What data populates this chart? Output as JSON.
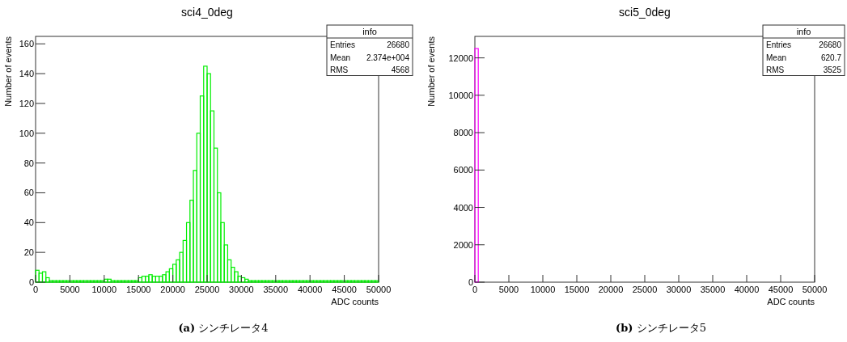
{
  "chart_data": [
    {
      "type": "histogram",
      "title": "sci4_0deg",
      "xlabel": "ADC counts",
      "ylabel": "Number of events",
      "color": "#00ee00",
      "bins": [
        0,
        500,
        1000,
        1500,
        2000,
        2500,
        3000,
        3500,
        4000,
        4500,
        5000,
        5500,
        6000,
        6500,
        7000,
        7500,
        8000,
        8500,
        9000,
        9500,
        10000,
        10500,
        11000,
        11500,
        12000,
        12500,
        13000,
        13500,
        14000,
        14500,
        15000,
        15500,
        16000,
        16500,
        17000,
        17500,
        18000,
        18500,
        19000,
        19500,
        20000,
        20500,
        21000,
        21500,
        22000,
        22500,
        23000,
        23500,
        24000,
        24500,
        25000,
        25500,
        26000,
        26500,
        27000,
        27500,
        28000,
        28500,
        29000,
        29500,
        30000,
        30500,
        31000,
        31500,
        32000,
        32500,
        33000,
        33500,
        34000,
        34500,
        35000,
        35500,
        36000,
        36500,
        37000,
        37500,
        38000,
        38500,
        39000,
        39500,
        40000,
        40500,
        41000,
        41500,
        42000,
        42500,
        43000,
        43500,
        44000,
        44500,
        45000,
        45500,
        46000,
        46500,
        47000,
        47500,
        48000,
        48500,
        49000,
        49500,
        50000
      ],
      "values": [
        8,
        6,
        7,
        3,
        1,
        1,
        1,
        1,
        1,
        1,
        1,
        1,
        1,
        1,
        1,
        1,
        1,
        1,
        1,
        1,
        2,
        2,
        1,
        1,
        1,
        1,
        1,
        1,
        1,
        1,
        3,
        4,
        4,
        5,
        4,
        4,
        4,
        5,
        7,
        9,
        12,
        15,
        20,
        28,
        40,
        55,
        75,
        100,
        125,
        145,
        140,
        115,
        90,
        60,
        40,
        25,
        15,
        10,
        7,
        4,
        3,
        2,
        1,
        1,
        1,
        1,
        1,
        1,
        1,
        1,
        1,
        1,
        1,
        1,
        1,
        1,
        1,
        1,
        1,
        1,
        1,
        1,
        1,
        1,
        1,
        1,
        1,
        1,
        1,
        1,
        1,
        1,
        1,
        1,
        1,
        1,
        1,
        1,
        1,
        1
      ],
      "xlim": [
        0,
        50000
      ],
      "xticks": [
        0,
        5000,
        10000,
        15000,
        20000,
        25000,
        30000,
        35000,
        40000,
        45000,
        50000
      ],
      "ylim": [
        0,
        165
      ],
      "yticks": [
        0,
        20,
        40,
        60,
        80,
        100,
        120,
        140,
        160
      ],
      "annotations": [
        "info",
        "Entries 26680",
        "Mean 2.374e+004",
        "RMS 4568",
        "(a) シンチレータ4"
      ]
    },
    {
      "type": "histogram",
      "title": "sci5_0deg",
      "xlabel": "ADC counts",
      "ylabel": "Number of events",
      "color": "#ff00ff",
      "bins": [
        0,
        500,
        1000,
        1500,
        2000,
        2500,
        3000,
        3500,
        4000,
        4500,
        5000,
        5500,
        6000,
        6500,
        7000,
        7500,
        8000,
        8500,
        9000,
        9500,
        10000,
        10500,
        11000,
        11500,
        12000,
        12500,
        13000,
        13500,
        14000,
        14500,
        15000,
        15500,
        16000,
        16500,
        17000,
        17500,
        18000,
        18500,
        19000,
        19500,
        20000,
        20500,
        21000,
        21500,
        22000,
        22500,
        23000,
        23500,
        24000,
        24500,
        25000,
        25500,
        26000,
        26500,
        27000,
        27500,
        28000,
        28500,
        29000,
        29500,
        30000,
        30500,
        31000,
        31500,
        32000,
        32500,
        33000,
        33500,
        34000,
        34500,
        35000,
        35500,
        36000,
        36500,
        37000,
        37500,
        38000,
        38500,
        39000,
        39500,
        40000,
        40500,
        41000,
        41500,
        42000,
        42500,
        43000,
        43500,
        44000,
        44500,
        45000,
        45500,
        46000,
        46500,
        47000,
        47500,
        48000,
        48500,
        49000,
        49500,
        50000
      ],
      "values": [
        12500,
        0,
        0,
        0,
        0,
        0,
        0,
        0,
        0,
        0,
        0,
        0,
        0,
        0,
        0,
        0,
        0,
        0,
        0,
        0,
        0,
        0,
        0,
        0,
        0,
        0,
        0,
        0,
        0,
        0,
        0,
        0,
        0,
        0,
        0,
        0,
        0,
        0,
        0,
        0,
        0,
        0,
        0,
        0,
        0,
        0,
        0,
        0,
        0,
        0,
        0,
        0,
        0,
        0,
        0,
        0,
        0,
        0,
        0,
        0,
        0,
        0,
        0,
        0,
        0,
        0,
        0,
        0,
        0,
        0,
        0,
        0,
        0,
        0,
        0,
        0,
        0,
        0,
        0,
        0,
        0,
        0,
        0,
        0,
        0,
        0,
        0,
        0,
        0,
        0,
        0,
        0,
        0,
        0,
        0,
        0,
        0,
        0,
        0,
        0
      ],
      "xlim": [
        0,
        50000
      ],
      "xticks": [
        0,
        5000,
        10000,
        15000,
        20000,
        25000,
        30000,
        35000,
        40000,
        45000,
        50000
      ],
      "ylim": [
        0,
        13150
      ],
      "yticks": [
        0,
        2000,
        4000,
        6000,
        8000,
        10000,
        12000
      ],
      "annotations": [
        "info",
        "Entries 26680",
        "Mean 620.7",
        "RMS 3525",
        "(b) シンチレータ5"
      ]
    }
  ]
}
